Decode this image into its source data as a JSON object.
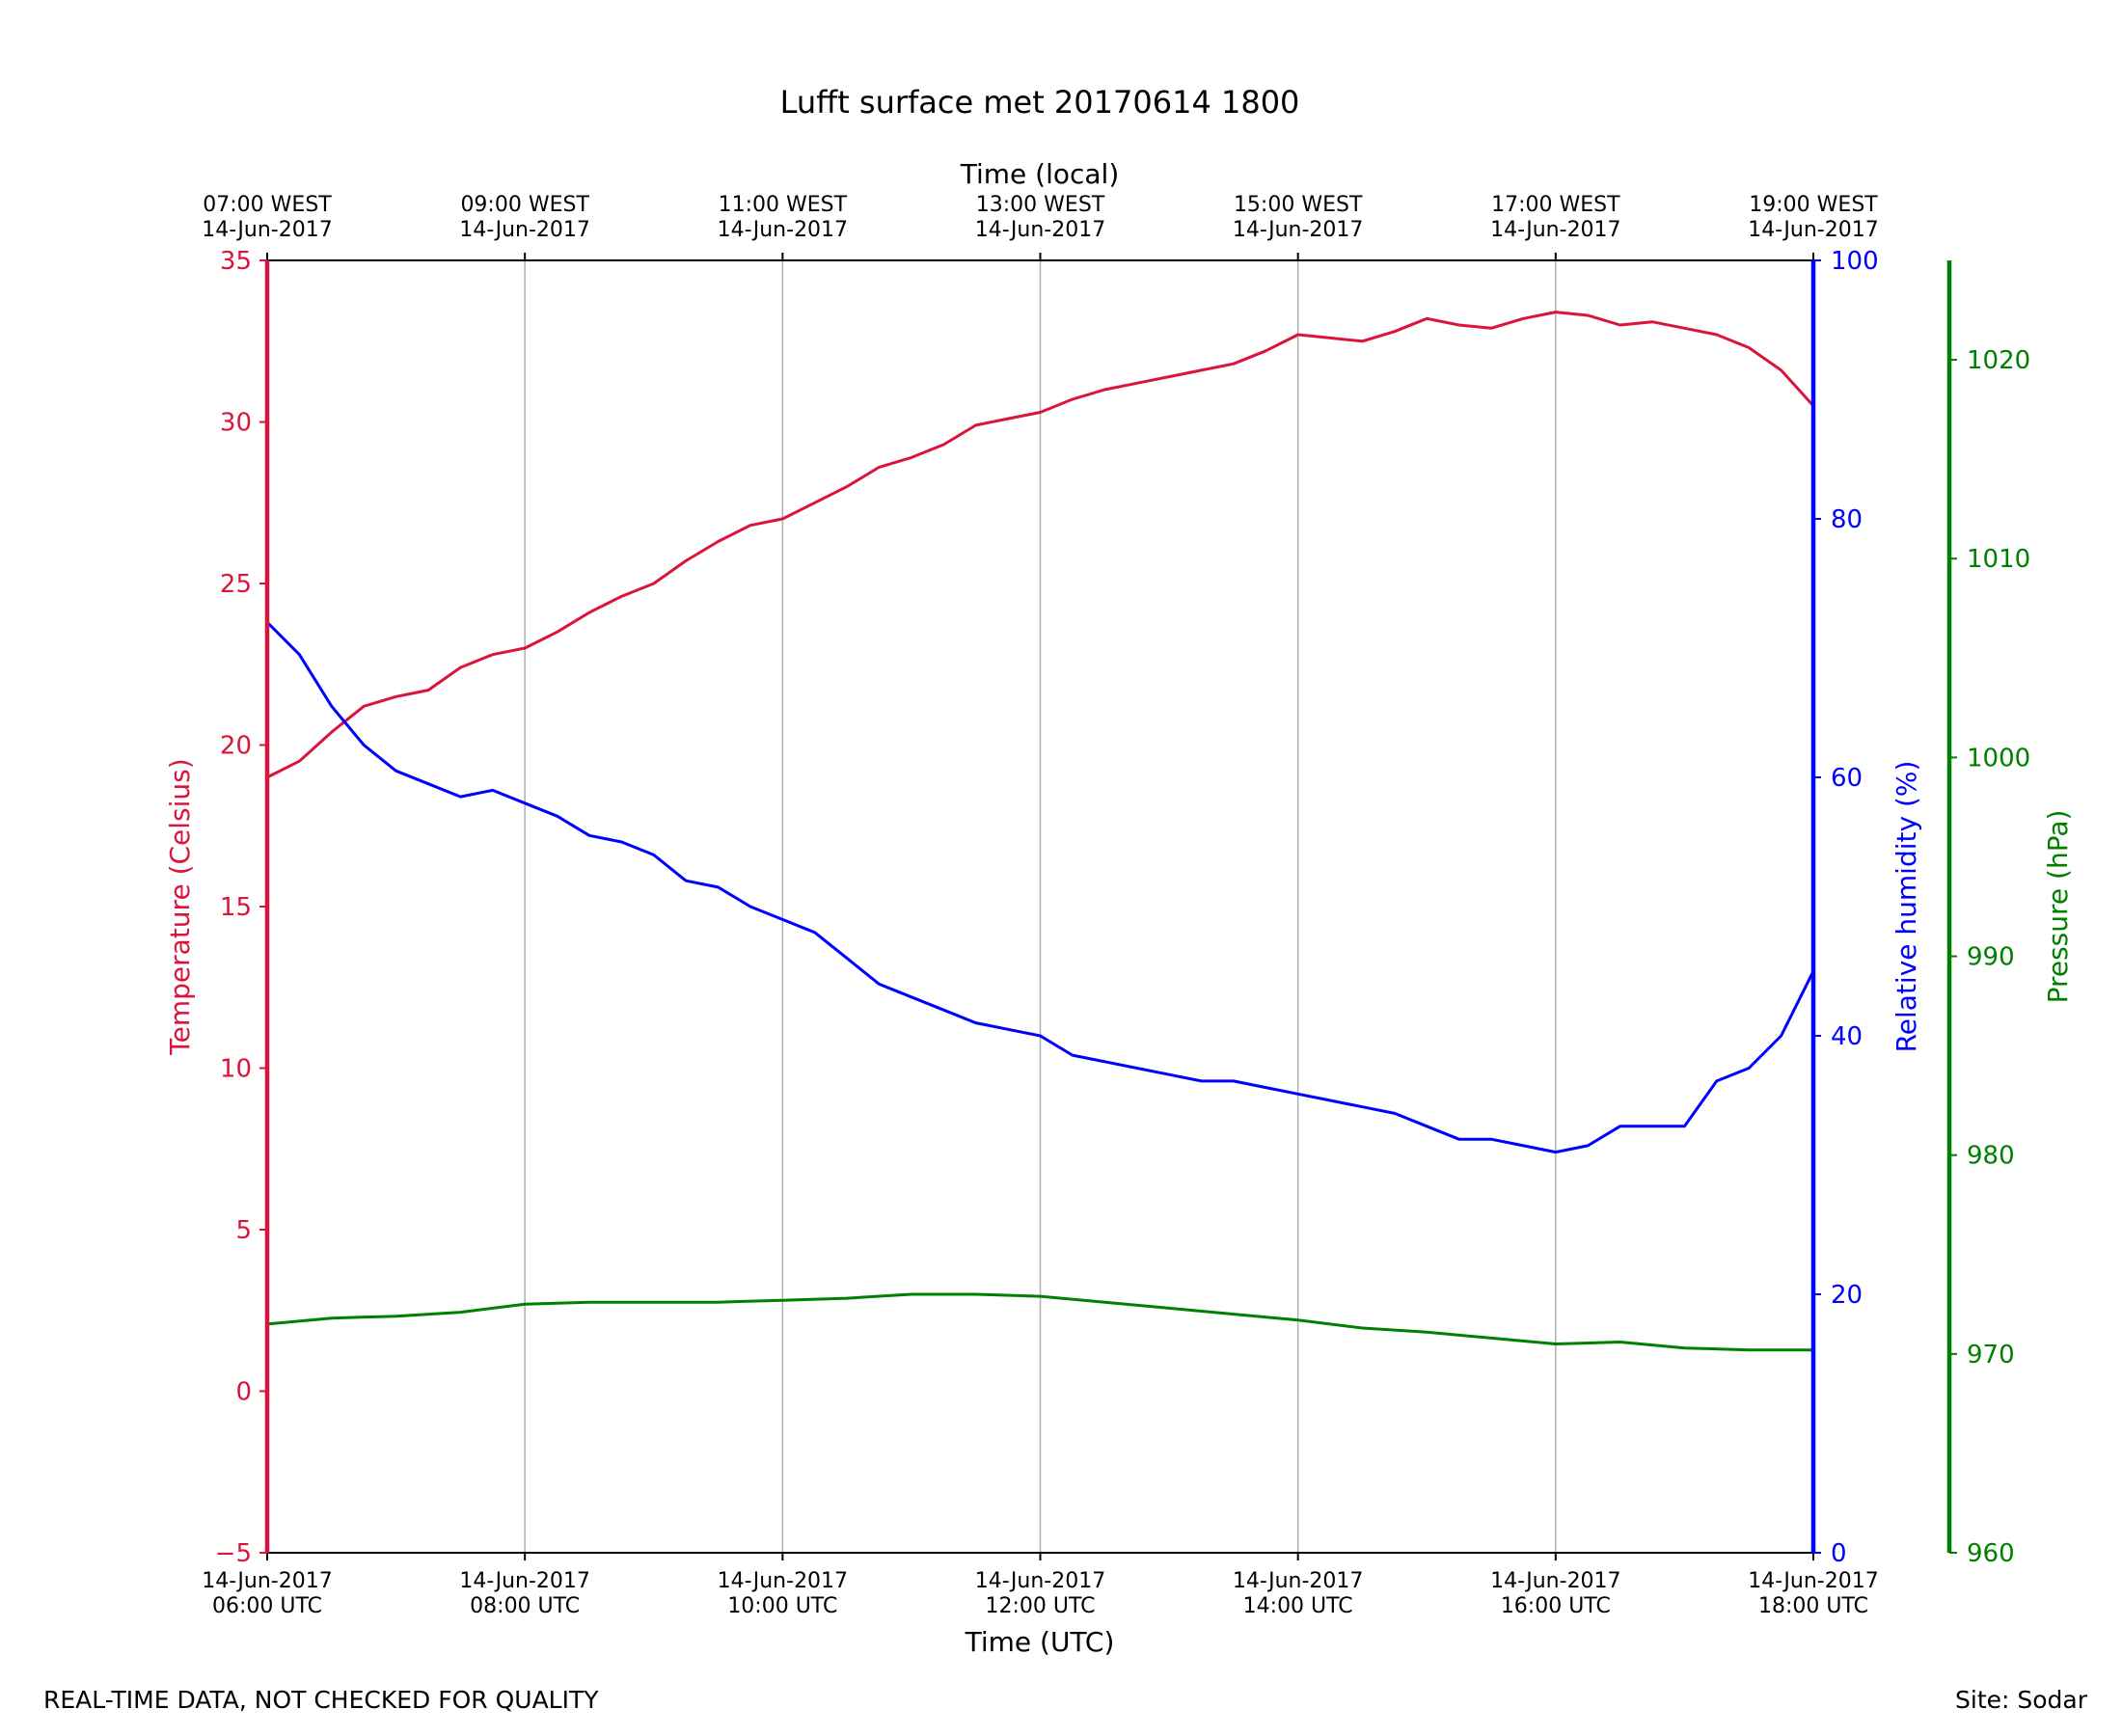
{
  "chart_data": {
    "type": "line",
    "title": "Lufft surface met 20170614 1800",
    "xlabel": "Time (UTC)",
    "x2label": "Time (local)",
    "xlim_utc_hours": [
      6,
      18
    ],
    "x_ticks_bottom": [
      {
        "hour": 6,
        "line1": "14-Jun-2017",
        "line2": "06:00 UTC"
      },
      {
        "hour": 8,
        "line1": "14-Jun-2017",
        "line2": "08:00 UTC"
      },
      {
        "hour": 10,
        "line1": "14-Jun-2017",
        "line2": "10:00 UTC"
      },
      {
        "hour": 12,
        "line1": "14-Jun-2017",
        "line2": "12:00 UTC"
      },
      {
        "hour": 14,
        "line1": "14-Jun-2017",
        "line2": "14:00 UTC"
      },
      {
        "hour": 16,
        "line1": "14-Jun-2017",
        "line2": "16:00 UTC"
      },
      {
        "hour": 18,
        "line1": "14-Jun-2017",
        "line2": "18:00 UTC"
      }
    ],
    "x_ticks_top": [
      {
        "hour": 6,
        "line1": "07:00 WEST",
        "line2": "14-Jun-2017"
      },
      {
        "hour": 8,
        "line1": "09:00 WEST",
        "line2": "14-Jun-2017"
      },
      {
        "hour": 10,
        "line1": "11:00 WEST",
        "line2": "14-Jun-2017"
      },
      {
        "hour": 12,
        "line1": "13:00 WEST",
        "line2": "14-Jun-2017"
      },
      {
        "hour": 14,
        "line1": "15:00 WEST",
        "line2": "14-Jun-2017"
      },
      {
        "hour": 16,
        "line1": "17:00 WEST",
        "line2": "14-Jun-2017"
      },
      {
        "hour": 18,
        "line1": "19:00 WEST",
        "line2": "14-Jun-2017"
      }
    ],
    "grid": "vertical",
    "axes": {
      "temperature": {
        "label": "Temperature (Celsius)",
        "range": [
          -5,
          35
        ],
        "ticks": [
          -5,
          0,
          5,
          10,
          15,
          20,
          25,
          30,
          35
        ],
        "color": "#dc143c",
        "position": "left"
      },
      "humidity": {
        "label": "Relative humidity (%)",
        "range": [
          0,
          100
        ],
        "ticks": [
          0,
          20,
          40,
          60,
          80,
          100
        ],
        "color": "#0000ff",
        "position": "right"
      },
      "pressure": {
        "label": "Pressure (hPa)",
        "range": [
          960,
          1025
        ],
        "ticks": [
          960,
          970,
          980,
          990,
          1000,
          1010,
          1020
        ],
        "color": "#008000",
        "position": "right-outer"
      }
    },
    "series": [
      {
        "axis": "temperature",
        "color": "#dc143c",
        "x": [
          6.0,
          6.25,
          6.5,
          6.75,
          7.0,
          7.25,
          7.5,
          7.75,
          8.0,
          8.25,
          8.5,
          8.75,
          9.0,
          9.25,
          9.5,
          9.75,
          10.0,
          10.25,
          10.5,
          10.75,
          11.0,
          11.25,
          11.5,
          11.75,
          12.0,
          12.25,
          12.5,
          12.75,
          13.0,
          13.25,
          13.5,
          13.75,
          14.0,
          14.25,
          14.5,
          14.75,
          15.0,
          15.25,
          15.5,
          15.75,
          16.0,
          16.25,
          16.5,
          16.75,
          17.0,
          17.25,
          17.5,
          17.75,
          18.0
        ],
        "y": [
          19.0,
          19.5,
          20.4,
          21.2,
          21.5,
          21.7,
          22.4,
          22.8,
          23.0,
          23.5,
          24.1,
          24.6,
          25.0,
          25.7,
          26.3,
          26.8,
          27.0,
          27.5,
          28.0,
          28.6,
          28.9,
          29.3,
          29.9,
          30.1,
          30.3,
          30.7,
          31.0,
          31.2,
          31.4,
          31.6,
          31.8,
          32.2,
          32.7,
          32.6,
          32.5,
          32.8,
          33.2,
          33.0,
          32.9,
          33.2,
          33.4,
          33.3,
          33.0,
          33.1,
          32.9,
          32.7,
          32.3,
          31.6,
          30.5
        ]
      },
      {
        "axis": "humidity",
        "color": "#0000ff",
        "x": [
          6.0,
          6.25,
          6.5,
          6.75,
          7.0,
          7.25,
          7.5,
          7.75,
          8.0,
          8.25,
          8.5,
          8.75,
          9.0,
          9.25,
          9.5,
          9.75,
          10.0,
          10.25,
          10.5,
          10.75,
          11.0,
          11.25,
          11.5,
          11.75,
          12.0,
          12.25,
          12.5,
          12.75,
          13.0,
          13.25,
          13.5,
          13.75,
          14.0,
          14.25,
          14.5,
          14.75,
          15.0,
          15.25,
          15.5,
          15.75,
          16.0,
          16.25,
          16.5,
          16.75,
          17.0,
          17.25,
          17.5,
          17.75,
          18.0
        ],
        "y": [
          72.0,
          69.5,
          65.5,
          62.5,
          60.5,
          59.5,
          58.5,
          59.0,
          58.0,
          57.0,
          55.5,
          55.0,
          54.0,
          52.0,
          51.5,
          50.0,
          49.0,
          48.0,
          46.0,
          44.0,
          43.0,
          42.0,
          41.0,
          40.5,
          40.0,
          38.5,
          38.0,
          37.5,
          37.0,
          36.5,
          36.5,
          36.0,
          35.5,
          35.0,
          34.5,
          34.0,
          33.0,
          32.0,
          32.0,
          31.5,
          31.0,
          31.5,
          33.0,
          33.0,
          33.0,
          36.5,
          37.5,
          40.0,
          45.0
        ]
      },
      {
        "axis": "pressure",
        "color": "#008000",
        "x": [
          6.0,
          6.5,
          7.0,
          7.5,
          8.0,
          8.5,
          9.0,
          9.5,
          10.0,
          10.5,
          11.0,
          11.5,
          12.0,
          12.5,
          13.0,
          13.5,
          14.0,
          14.5,
          15.0,
          15.5,
          16.0,
          16.5,
          17.0,
          17.5,
          18.0
        ],
        "y": [
          971.5,
          971.8,
          971.9,
          972.1,
          972.5,
          972.6,
          972.6,
          972.6,
          972.7,
          972.8,
          973.0,
          973.0,
          972.9,
          972.6,
          972.3,
          972.0,
          971.7,
          971.3,
          971.1,
          970.8,
          970.5,
          970.6,
          970.3,
          970.2,
          970.2
        ]
      }
    ]
  },
  "footer": {
    "left": "REAL-TIME DATA, NOT CHECKED FOR QUALITY",
    "right": "Site: Sodar"
  }
}
